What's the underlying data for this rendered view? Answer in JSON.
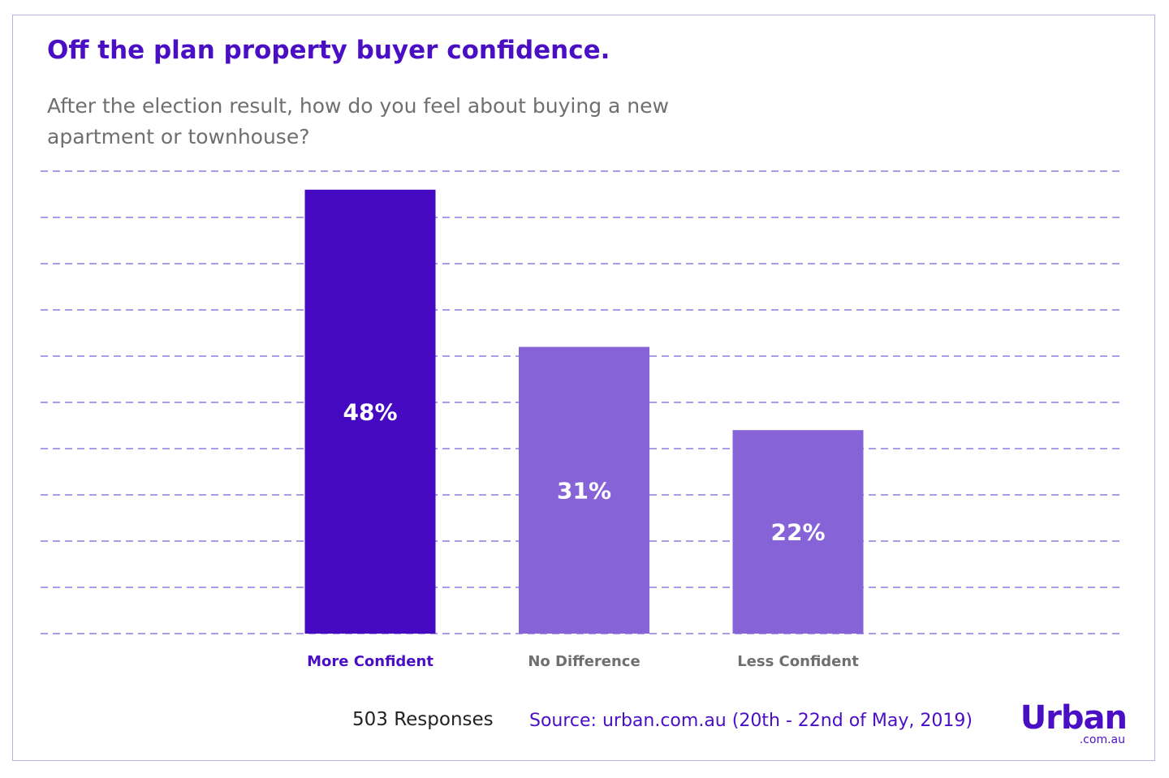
{
  "title": "Off the plan property buyer confidence.",
  "subtitle": "After the election result, how do you feel about buying a new apartment or townhouse?",
  "footer": {
    "responses": "503 Responses",
    "source": "Source: urban.com.au (20th - 22nd of May, 2019)"
  },
  "logo": {
    "main": "Urban",
    "sub": ".com.au"
  },
  "colors": {
    "brand": "#4a0fc4",
    "bar_primary": "#4509c2",
    "bar_secondary": "#8763d8",
    "gridline": "#8d7be0",
    "label_secondary": "#6f6f6f",
    "frame": "#b9b2e0"
  },
  "chart_data": {
    "type": "bar",
    "title": "Off the plan property buyer confidence.",
    "categories": [
      "More Confident",
      "No Difference",
      "Less Confident"
    ],
    "values": [
      48,
      31,
      22
    ],
    "value_labels": [
      "48%",
      "31%",
      "22%"
    ],
    "unit": "%",
    "ylim": [
      0,
      50
    ],
    "grid": true,
    "grid_style": "dashed",
    "y_axis_labels_shown": false,
    "highlight_category": "More Confident"
  }
}
